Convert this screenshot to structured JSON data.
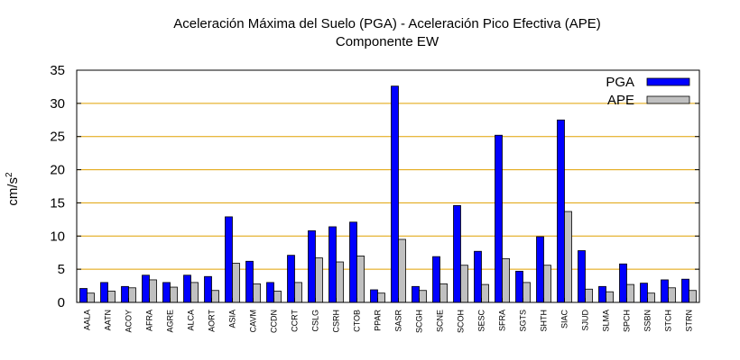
{
  "chart_data": {
    "type": "bar",
    "title": "Aceleración Máxima del Suelo (PGA) -  Aceleración Pico Efectiva (APE)",
    "subtitle": "Componente EW",
    "xlabel": "",
    "ylabel": "cm/s",
    "ylabel_sup": "2",
    "ylim": [
      0,
      35
    ],
    "yticks": [
      0,
      5,
      10,
      15,
      20,
      25,
      30,
      35
    ],
    "grid": "horizontal",
    "legend_position": "top-right",
    "categories": [
      "AALA",
      "AATN",
      "ACOY",
      "AFRA",
      "AGRE",
      "ALCA",
      "AORT",
      "ASIA",
      "CAVM",
      "CCDN",
      "CCRT",
      "CSLG",
      "CSRH",
      "CTOB",
      "PPAR",
      "SASR",
      "SCGH",
      "SCNE",
      "SCOH",
      "SESC",
      "SFRA",
      "SGTS",
      "SHTH",
      "SIAC",
      "SJUD",
      "SLMA",
      "SPCH",
      "SSBN",
      "STCH",
      "STRN"
    ],
    "series": [
      {
        "name": "PGA",
        "color": "#0000ff",
        "values": [
          2.1,
          3.0,
          2.4,
          4.1,
          3.0,
          4.1,
          3.9,
          12.9,
          6.2,
          3.0,
          7.1,
          10.8,
          11.4,
          12.1,
          1.9,
          32.6,
          2.4,
          6.9,
          14.6,
          7.7,
          25.2,
          4.7,
          9.9,
          27.5,
          7.8,
          2.4,
          5.8,
          2.9,
          3.4,
          3.5
        ]
      },
      {
        "name": "APE",
        "color": "#c0c0c0",
        "values": [
          1.4,
          1.7,
          2.2,
          3.4,
          2.3,
          3.0,
          1.8,
          5.9,
          2.8,
          1.7,
          3.0,
          6.7,
          6.1,
          7.0,
          1.4,
          9.5,
          1.8,
          2.8,
          5.6,
          2.7,
          6.6,
          3.0,
          5.6,
          13.7,
          2.0,
          1.6,
          2.7,
          1.4,
          2.2,
          1.8
        ]
      }
    ]
  }
}
